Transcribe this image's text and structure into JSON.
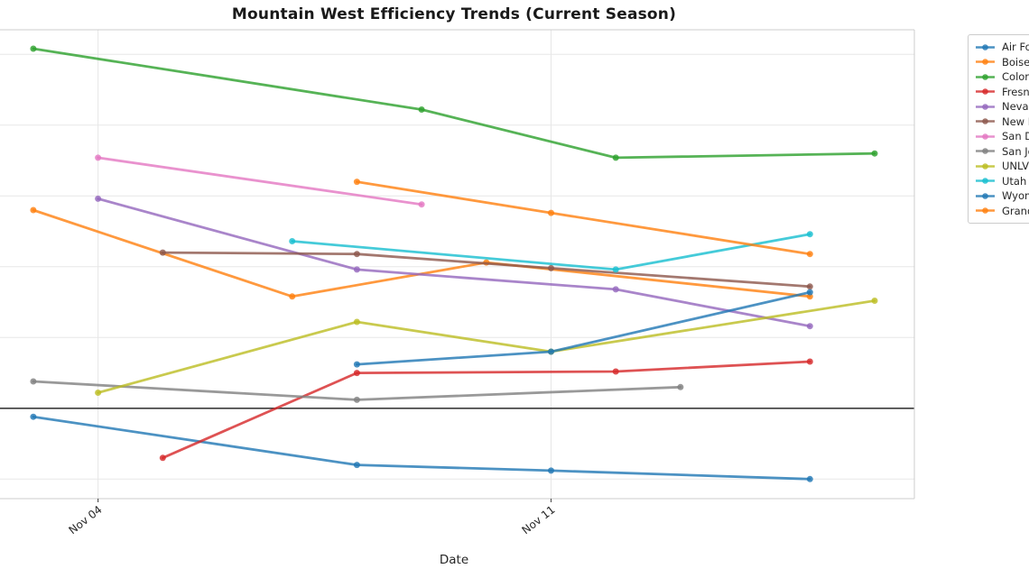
{
  "chart_data": {
    "type": "line",
    "title": "Mountain West Efficiency Trends (Current Season)",
    "xlabel": "Date",
    "ylabel": "",
    "x_ticks": [
      {
        "day": 4,
        "label": "Nov 04"
      },
      {
        "day": 11,
        "label": "Nov 11"
      }
    ],
    "x_range_days": [
      2.5,
      16.6
    ],
    "ylim": [
      -6.4,
      26.7
    ],
    "grid": true,
    "y_grid_step": 5,
    "zero_line": true,
    "legend_position": "outside-upper-right-clipped",
    "series": [
      {
        "name": "Air Force",
        "color": "#1f77b4",
        "points": [
          [
            3,
            -0.6
          ],
          [
            8,
            -4.0
          ],
          [
            11,
            -4.4
          ],
          [
            15,
            -5.0
          ]
        ]
      },
      {
        "name": "Boise State",
        "color": "#ff7f0e",
        "points": [
          [
            3,
            14.0
          ],
          [
            7,
            7.9
          ],
          [
            10,
            10.3
          ],
          [
            15,
            7.9
          ]
        ]
      },
      {
        "name": "Colorado State",
        "color": "#2ca02c",
        "points": [
          [
            3,
            25.4
          ],
          [
            9,
            21.1
          ],
          [
            12,
            17.7
          ],
          [
            16,
            18.0
          ]
        ]
      },
      {
        "name": "Fresno State",
        "color": "#d62728",
        "points": [
          [
            5,
            -3.5
          ],
          [
            8,
            2.5
          ],
          [
            12,
            2.6
          ],
          [
            15,
            3.3
          ]
        ]
      },
      {
        "name": "Nevada",
        "color": "#9467bd",
        "points": [
          [
            4,
            14.8
          ],
          [
            8,
            9.8
          ],
          [
            12,
            8.4
          ],
          [
            15,
            5.8
          ]
        ]
      },
      {
        "name": "New Mexico",
        "color": "#8c564b",
        "points": [
          [
            5,
            11.0
          ],
          [
            8,
            10.9
          ],
          [
            11,
            9.9
          ],
          [
            15,
            8.6
          ]
        ]
      },
      {
        "name": "San Diego State",
        "color": "#e377c2",
        "points": [
          [
            4,
            17.7
          ],
          [
            9,
            14.4
          ]
        ]
      },
      {
        "name": "San Jose State",
        "color": "#7f7f7f",
        "points": [
          [
            3,
            1.9
          ],
          [
            8,
            0.6
          ],
          [
            13,
            1.5
          ]
        ]
      },
      {
        "name": "UNLV",
        "color": "#bcbd22",
        "points": [
          [
            4,
            1.1
          ],
          [
            8,
            6.1
          ],
          [
            11,
            4.0
          ],
          [
            16,
            7.6
          ]
        ]
      },
      {
        "name": "Utah State",
        "color": "#17becf",
        "points": [
          [
            7,
            11.8
          ],
          [
            12,
            9.8
          ],
          [
            15,
            12.3
          ]
        ]
      },
      {
        "name": "Wyoming",
        "color": "#1f77b4",
        "points": [
          [
            8,
            3.1
          ],
          [
            11,
            4.0
          ],
          [
            15,
            8.2
          ]
        ]
      },
      {
        "name": "Grand Canyon",
        "color": "#ff7f0e",
        "points": [
          [
            8,
            16.0
          ],
          [
            11,
            13.8
          ],
          [
            15,
            10.9
          ]
        ]
      }
    ]
  }
}
